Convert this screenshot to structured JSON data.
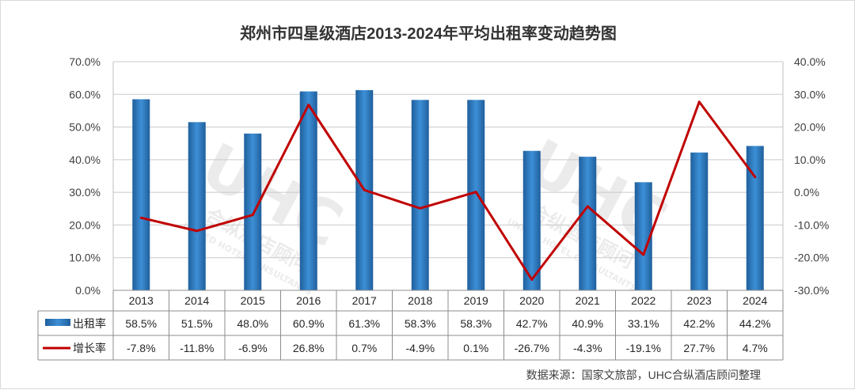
{
  "chart_data": {
    "type": "bar+line",
    "title": "郑州市四星级酒店2013-2024年平均出租率变动趋势图",
    "categories": [
      "2013",
      "2014",
      "2015",
      "2016",
      "2017",
      "2018",
      "2019",
      "2020",
      "2021",
      "2022",
      "2023",
      "2024"
    ],
    "series": [
      {
        "name": "出租率",
        "type": "bar",
        "axis": "left",
        "color": "#2e75b6",
        "values": [
          58.5,
          51.5,
          48.0,
          60.9,
          61.3,
          58.3,
          58.3,
          42.7,
          40.9,
          33.1,
          42.2,
          44.2
        ],
        "labels": [
          "58.5%",
          "51.5%",
          "48.0%",
          "60.9%",
          "61.3%",
          "58.3%",
          "58.3%",
          "42.7%",
          "40.9%",
          "33.1%",
          "42.2%",
          "44.2%"
        ]
      },
      {
        "name": "增长率",
        "type": "line",
        "axis": "right",
        "color": "#c00000",
        "values": [
          -7.8,
          -11.8,
          -6.9,
          26.8,
          0.7,
          -4.9,
          0.1,
          -26.7,
          -4.3,
          -19.1,
          27.7,
          4.7
        ],
        "labels": [
          "-7.8%",
          "-11.8%",
          "-6.9%",
          "26.8%",
          "0.7%",
          "-4.9%",
          "0.1%",
          "-26.7%",
          "-4.3%",
          "-19.1%",
          "27.7%",
          "4.7%"
        ]
      }
    ],
    "y_left": {
      "ylim": [
        0,
        70
      ],
      "ticks": [
        "0.0%",
        "10.0%",
        "20.0%",
        "30.0%",
        "40.0%",
        "50.0%",
        "60.0%",
        "70.0%"
      ]
    },
    "y_right": {
      "ylim": [
        -30,
        40
      ],
      "ticks": [
        "-30.0%",
        "-20.0%",
        "-10.0%",
        "0.0%",
        "10.0%",
        "20.0%",
        "30.0%",
        "40.0%"
      ]
    },
    "grid": true,
    "legend": "data-table"
  },
  "source_note": "数据来源：国家文旅部，UHC合纵酒店顾问整理",
  "watermark": {
    "logo": "UHC",
    "text_cn": "合纵酒店顾问",
    "text_en": "UNITED HOTEL CONSULTANTS"
  }
}
